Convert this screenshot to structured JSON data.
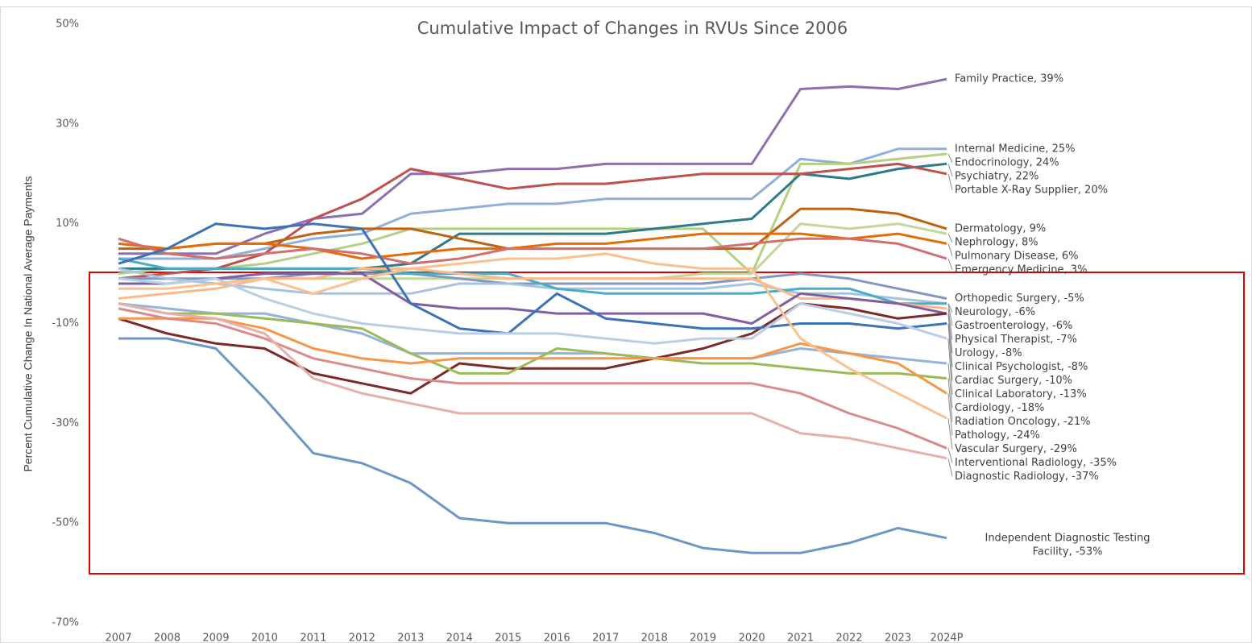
{
  "chart_data": {
    "type": "line",
    "title": "Cumulative Impact of Changes in RVUs Since 2006",
    "y_label": "Percent Cumulative Change In National Average Payments",
    "categories": [
      "2007",
      "2008",
      "2009",
      "2010",
      "2011",
      "2012",
      "2013",
      "2014",
      "2015",
      "2016",
      "2017",
      "2018",
      "2019",
      "2020",
      "2021",
      "2022",
      "2023",
      "2024P"
    ],
    "ylim": [
      -70,
      50
    ],
    "yticks": [
      {
        "value": -70,
        "label": "-70%"
      },
      {
        "value": -50,
        "label": "-50%"
      },
      {
        "value": -30,
        "label": "-30%"
      },
      {
        "value": -10,
        "label": "-10%"
      },
      {
        "value": 10,
        "label": "10%"
      },
      {
        "value": 30,
        "label": "30%"
      },
      {
        "value": 50,
        "label": "50%"
      }
    ],
    "grid": false,
    "series": [
      {
        "name": "Family Practice, 39%",
        "color": "#8e6fb0",
        "values": [
          4,
          4,
          4,
          8,
          11,
          12,
          20,
          20,
          21,
          21,
          22,
          22,
          22,
          22,
          37,
          37.5,
          37,
          39
        ]
      },
      {
        "name": "Internal Medicine, 25%",
        "color": "#8fb0d8",
        "values": [
          3,
          3,
          3,
          5,
          7,
          8,
          12,
          13,
          14,
          14,
          15,
          15,
          15,
          15,
          23,
          22,
          25,
          25
        ]
      },
      {
        "name": "Endocrinology, 24%",
        "color": "#b5cf84",
        "values": [
          0,
          1,
          1,
          2,
          4,
          6,
          9,
          9,
          9,
          9,
          9,
          9,
          9,
          0,
          22,
          22,
          23,
          24
        ]
      },
      {
        "name": "Psychiatry, 22%",
        "color": "#2e7a8a",
        "values": [
          1,
          1,
          1,
          1,
          1,
          1,
          2,
          8,
          8,
          8,
          8,
          9,
          10,
          11,
          20,
          19,
          21,
          22
        ]
      },
      {
        "name": "Portable X-Ray Supplier, 20%",
        "color": "#c0504d",
        "values": [
          -1,
          0,
          1,
          4,
          11,
          15,
          21,
          19,
          17,
          18,
          18,
          19,
          20,
          20,
          20,
          21,
          22,
          20
        ]
      },
      {
        "name": "Dermatology, 9%",
        "color": "#c0620f",
        "values": [
          5,
          5,
          6,
          6,
          8,
          9,
          9,
          7,
          5,
          5,
          5,
          5,
          5,
          5,
          13,
          13,
          12,
          9
        ]
      },
      {
        "name": "Nephrology, 8%",
        "color": "#c3d69b",
        "values": [
          -1,
          -1,
          -2,
          -1,
          -1,
          -1,
          -1,
          -1,
          -1,
          -1,
          -1,
          -1,
          0,
          0,
          10,
          9,
          10,
          8
        ]
      },
      {
        "name": "Pulmonary Disease, 6%",
        "color": "#e36c09",
        "values": [
          6,
          5,
          6,
          6,
          5,
          3,
          4,
          5,
          5,
          6,
          6,
          7,
          8,
          8,
          8,
          7,
          8,
          6
        ]
      },
      {
        "name": "Emergency Medicine, 3%",
        "color": "#d07070",
        "values": [
          7,
          4,
          3,
          4,
          5,
          4,
          2,
          3,
          5,
          5,
          5,
          5,
          5,
          6,
          7,
          7,
          6,
          3
        ]
      },
      {
        "name": "Orthopedic Surgery, -5%",
        "color": "#8497c0",
        "values": [
          -1,
          -1,
          -1,
          -1,
          0,
          0,
          0,
          -1,
          -2,
          -2,
          -2,
          -2,
          -2,
          -1,
          0,
          -1,
          -3,
          -5
        ]
      },
      {
        "name": "Neurology, -6%",
        "color": "#a6c4e0",
        "values": [
          1,
          -1,
          -2,
          -3,
          -4,
          -4,
          -4,
          -2,
          -2,
          -3,
          -3,
          -3,
          -3,
          -2,
          -4,
          -4,
          -5,
          -6
        ]
      },
      {
        "name": "Gastroenterology, -6%",
        "color": "#4bacc6",
        "values": [
          3,
          1,
          1,
          1,
          1,
          1,
          0,
          0,
          0,
          -3,
          -4,
          -4,
          -4,
          -4,
          -3,
          -3,
          -6,
          -6
        ]
      },
      {
        "name": "Physical Therapist, -7%",
        "color": "#f9b98a",
        "values": [
          -5,
          -4,
          -3,
          -1,
          -1,
          1,
          1,
          0,
          -1,
          -1,
          -1,
          -1,
          -1,
          -1,
          -5,
          -5,
          -6,
          -7
        ]
      },
      {
        "name": "Urology, -8%",
        "color": "#7f5fa0",
        "values": [
          -2,
          -2,
          -1,
          0,
          0,
          0,
          -6,
          -7,
          -7,
          -8,
          -8,
          -8,
          -8,
          -10,
          -4,
          -5,
          -6,
          -8
        ]
      },
      {
        "name": "Clinical Psychologist, -8%",
        "color": "#7b2a2a",
        "values": [
          -9,
          -12,
          -14,
          -15,
          -20,
          -22,
          -24,
          -18,
          -19,
          -19,
          -19,
          -17,
          -15,
          -12,
          -6,
          -7,
          -9,
          -8
        ]
      },
      {
        "name": "Cardiac Surgery, -10%",
        "color": "#3d72b8",
        "values": [
          2,
          5,
          10,
          9,
          10,
          9,
          -6,
          -11,
          -12,
          -4,
          -9,
          -10,
          -11,
          -11,
          -10,
          -10,
          -11,
          -10
        ]
      },
      {
        "name": "Clinical Laboratory, -13%",
        "color": "#b9cde5",
        "values": [
          -1,
          -2,
          -1,
          -5,
          -8,
          -10,
          -11,
          -12,
          -12,
          -12,
          -13,
          -14,
          -13,
          -13,
          -6,
          -8,
          -10,
          -13
        ]
      },
      {
        "name": "Cardiology, -18%",
        "color": "#95b3d7",
        "values": [
          -6,
          -7,
          -8,
          -8,
          -10,
          -12,
          -16,
          -16,
          -16,
          -16,
          -16,
          -17,
          -17,
          -17,
          -15,
          -16,
          -17,
          -18
        ]
      },
      {
        "name": "Radiation Oncology, -21%",
        "color": "#9bbb59",
        "values": [
          -6,
          -8,
          -8,
          -9,
          -10,
          -11,
          -16,
          -20,
          -20,
          -15,
          -16,
          -17,
          -18,
          -18,
          -19,
          -20,
          -20,
          -21
        ]
      },
      {
        "name": "Pathology, -24%",
        "color": "#f79646",
        "values": [
          -9,
          -9,
          -9,
          -11,
          -15,
          -17,
          -18,
          -17,
          -17,
          -17,
          -17,
          -17,
          -17,
          -17,
          -14,
          -16,
          -18,
          -24
        ]
      },
      {
        "name": "Vascular Surgery, -29%",
        "color": "#fac090",
        "values": [
          -3,
          -3,
          -2,
          -1,
          -4,
          -1,
          1,
          2,
          3,
          3,
          4,
          2,
          1,
          1,
          -13,
          -19,
          -24,
          -29
        ]
      },
      {
        "name": "Interventional Radiology, -35%",
        "color": "#d98b8b",
        "values": [
          -7,
          -9,
          -10,
          -13,
          -17,
          -19,
          -21,
          -22,
          -22,
          -22,
          -22,
          -22,
          -22,
          -22,
          -24,
          -28,
          -31,
          -35
        ]
      },
      {
        "name": "Diagnostic Radiology, -37%",
        "color": "#e6b0a8",
        "values": [
          -6,
          -8,
          -9,
          -12,
          -21,
          -24,
          -26,
          -28,
          -28,
          -28,
          -28,
          -28,
          -28,
          -28,
          -32,
          -33,
          -35,
          -37
        ]
      },
      {
        "name": "Independent Diagnostic Testing Facility, -53%",
        "color": "#6d96c8",
        "values": [
          -13,
          -13,
          -15,
          -25,
          -36,
          -38,
          -42,
          -49,
          -50,
          -50,
          -50,
          -52,
          -55,
          -56,
          -56,
          -54,
          -51,
          -53
        ]
      }
    ]
  }
}
